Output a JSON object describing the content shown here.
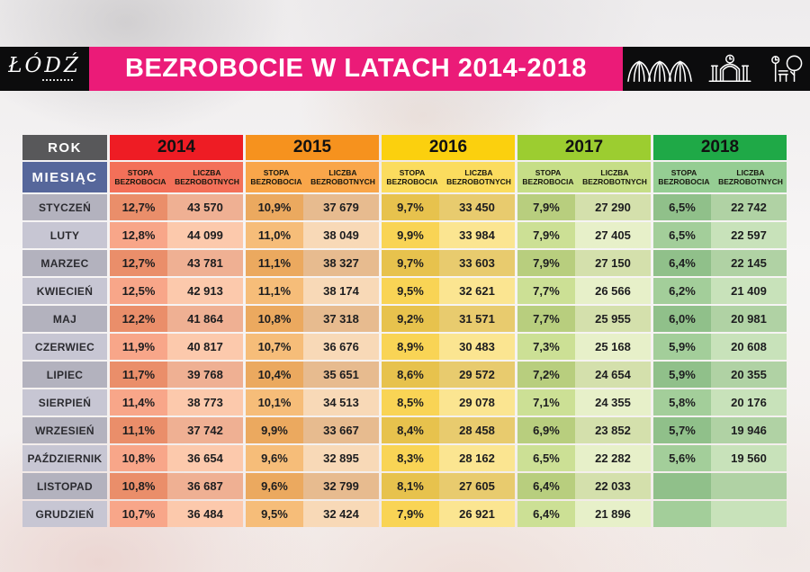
{
  "header": {
    "logo_text": "ŁÓDŹ",
    "title": "BEZROBOCIE W LATACH 2014-2018",
    "banner_color": "#EB1B78",
    "icons": [
      "arches-landmark-icon",
      "gate-landmark-icon",
      "park-landmark-icon"
    ]
  },
  "table": {
    "corner": {
      "rok": "ROK",
      "miesiac": "MIESIĄC"
    },
    "sub_headers": {
      "stopa": "STOPA BEZROBOCIA",
      "liczba": "LICZBA BEZROBOTNYCH"
    },
    "palette": {
      "corner_rok_bg": "#58585A",
      "corner_miesiac_bg": "#56679B",
      "month_bg": [
        "#B3B2BE",
        "#C7C6D3"
      ],
      "years": [
        {
          "header": "#EE1C24",
          "sub": "#F37059",
          "stopa": [
            "#EA8E6A",
            "#F8A689"
          ],
          "liczba": [
            "#EFB093",
            "#FCC9AC"
          ]
        },
        {
          "header": "#F6921E",
          "sub": "#F9A64A",
          "stopa": [
            "#EBA95F",
            "#F6BD79"
          ],
          "liczba": [
            "#E7BB8F",
            "#F8D9B7"
          ]
        },
        {
          "header": "#FBD00E",
          "sub": "#FBDC5E",
          "stopa": [
            "#E7C24D",
            "#F9D455"
          ],
          "liczba": [
            "#E8CB6E",
            "#FBE591"
          ]
        },
        {
          "header": "#9CCD30",
          "sub": "#C6DE87",
          "stopa": [
            "#B8CE7E",
            "#CCE095"
          ],
          "liczba": [
            "#D4E0AC",
            "#E7F0C9"
          ]
        },
        {
          "header": "#1FA947",
          "sub": "#95CD93",
          "stopa": [
            "#90C08A",
            "#A3CE9A"
          ],
          "liczba": [
            "#B0D2A4",
            "#C8E2BA"
          ]
        }
      ]
    }
  },
  "chart_data": {
    "type": "table",
    "title": "BEZROBOCIE W LATACH 2014-2018",
    "col_group_header": "ROK",
    "row_header": "MIESIĄC",
    "sub_columns": [
      "STOPA BEZROBOCIA",
      "LICZBA BEZROBOTNYCH"
    ],
    "years": [
      "2014",
      "2015",
      "2016",
      "2017",
      "2018"
    ],
    "months": [
      "STYCZEŃ",
      "LUTY",
      "MARZEC",
      "KWIECIEŃ",
      "MAJ",
      "CZERWIEC",
      "LIPIEC",
      "SIERPIEŃ",
      "WRZESIEŃ",
      "PAŹDZIERNIK",
      "LISTOPAD",
      "GRUDZIEŃ"
    ],
    "series": [
      {
        "year": "2014",
        "stopa_bezrobocia": [
          "12,7%",
          "12,8%",
          "12,7%",
          "12,5%",
          "12,2%",
          "11,9%",
          "11,7%",
          "11,4%",
          "11,1%",
          "10,8%",
          "10,8%",
          "10,7%"
        ],
        "liczba_bezrobotnych": [
          "43 570",
          "44 099",
          "43 781",
          "42 913",
          "41 864",
          "40 817",
          "39 768",
          "38 773",
          "37 742",
          "36 654",
          "36 687",
          "36 484"
        ]
      },
      {
        "year": "2015",
        "stopa_bezrobocia": [
          "10,9%",
          "11,0%",
          "11,1%",
          "11,1%",
          "10,8%",
          "10,7%",
          "10,4%",
          "10,1%",
          "9,9%",
          "9,6%",
          "9,6%",
          "9,5%"
        ],
        "liczba_bezrobotnych": [
          "37 679",
          "38 049",
          "38 327",
          "38 174",
          "37 318",
          "36 676",
          "35 651",
          "34 513",
          "33 667",
          "32 895",
          "32 799",
          "32 424"
        ]
      },
      {
        "year": "2016",
        "stopa_bezrobocia": [
          "9,7%",
          "9,9%",
          "9,7%",
          "9,5%",
          "9,2%",
          "8,9%",
          "8,6%",
          "8,5%",
          "8,4%",
          "8,3%",
          "8,1%",
          "7,9%"
        ],
        "liczba_bezrobotnych": [
          "33 450",
          "33 984",
          "33 603",
          "32 621",
          "31 571",
          "30 483",
          "29 572",
          "29 078",
          "28 458",
          "28 162",
          "27 605",
          "26 921"
        ]
      },
      {
        "year": "2017",
        "stopa_bezrobocia": [
          "7,9%",
          "7,9%",
          "7,9%",
          "7,7%",
          "7,7%",
          "7,3%",
          "7,2%",
          "7,1%",
          "6,9%",
          "6,5%",
          "6,4%",
          "6,4%"
        ],
        "liczba_bezrobotnych": [
          "27 290",
          "27 405",
          "27 150",
          "26 566",
          "25 955",
          "25 168",
          "24 654",
          "24 355",
          "23 852",
          "22 282",
          "22 033",
          "21 896"
        ]
      },
      {
        "year": "2018",
        "stopa_bezrobocia": [
          "6,5%",
          "6,5%",
          "6,4%",
          "6,2%",
          "6,0%",
          "5,9%",
          "5,9%",
          "5,8%",
          "5,7%",
          "5,6%",
          "",
          ""
        ],
        "liczba_bezrobotnych": [
          "22 742",
          "22 597",
          "22 145",
          "21 409",
          "20 981",
          "20 608",
          "20 355",
          "20 176",
          "19 946",
          "19 560",
          "",
          ""
        ]
      }
    ]
  }
}
